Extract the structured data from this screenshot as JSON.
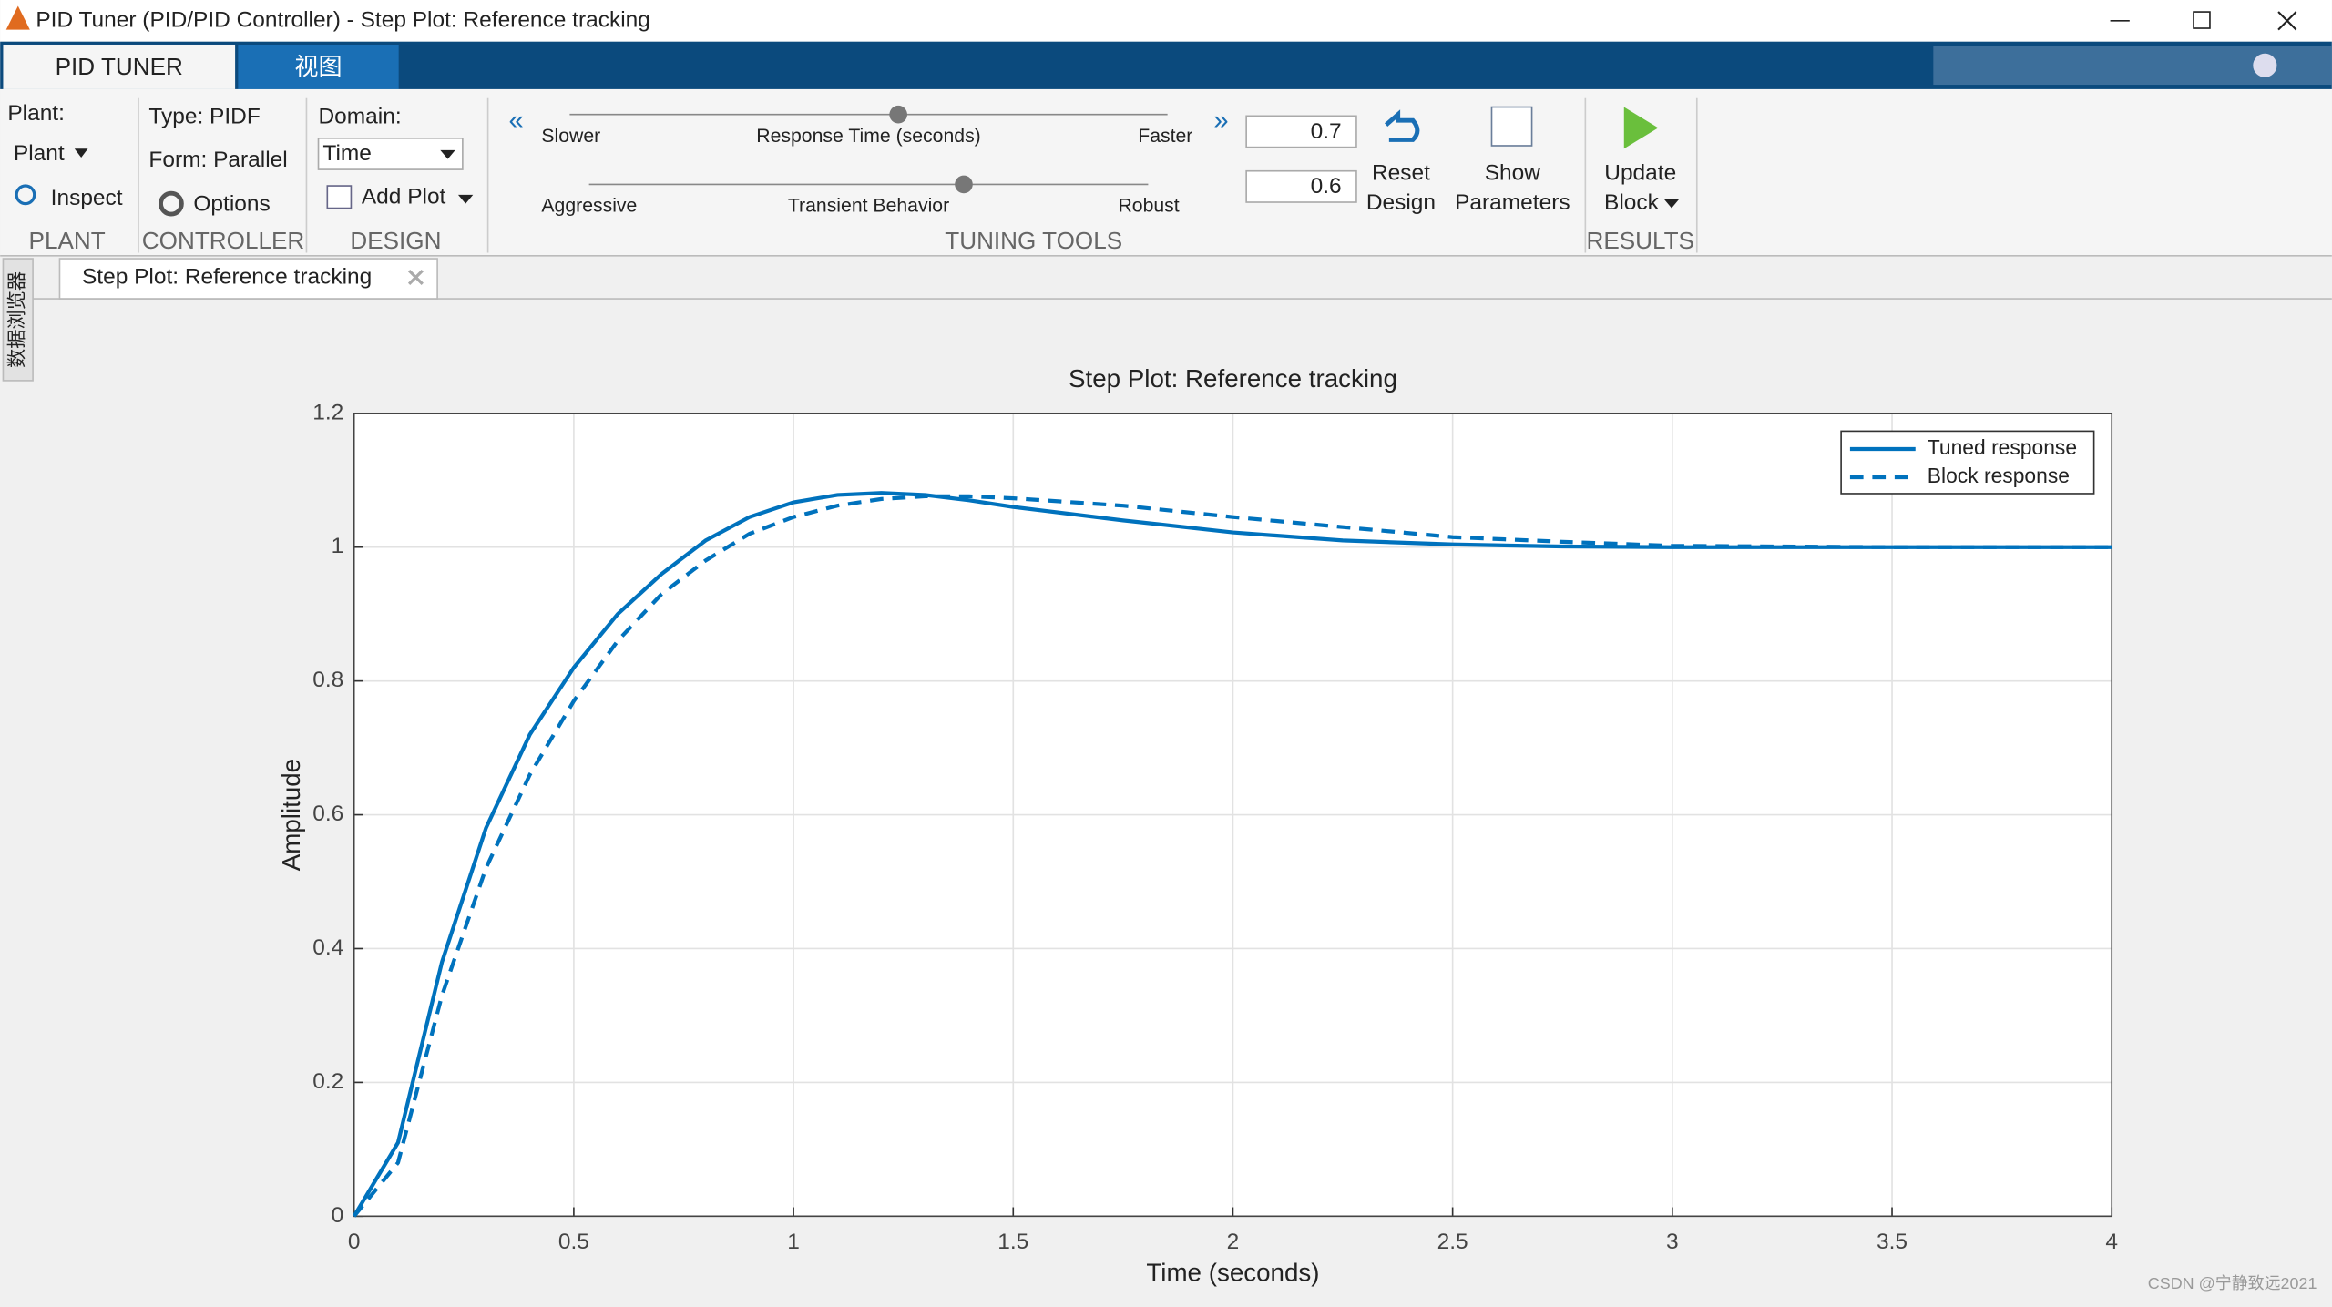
{
  "window": {
    "title": "PID Tuner (PID/PID Controller) - Step Plot: Reference tracking"
  },
  "tabs": [
    "PID TUNER",
    "视图"
  ],
  "toolstrip": {
    "plant": {
      "label": "Plant:",
      "dropdown": "Plant",
      "inspect": "Inspect",
      "group": "PLANT"
    },
    "controller": {
      "type": "Type: PIDF",
      "form": "Form: Parallel",
      "options": "Options",
      "group": "CONTROLLER"
    },
    "design": {
      "domain_label": "Domain:",
      "domain": "Time",
      "add_plot": "Add Plot",
      "group": "DESIGN"
    },
    "tuning": {
      "slower": "Slower",
      "response_time": "Response Time (seconds)",
      "faster": "Faster",
      "aggressive": "Aggressive",
      "transient": "Transient Behavior",
      "robust": "Robust",
      "response_value": 0.7,
      "transient_value": 0.6,
      "reset": [
        "Reset",
        "Design"
      ],
      "show": [
        "Show",
        "Parameters"
      ],
      "group": "TUNING TOOLS"
    },
    "results": {
      "update": [
        "Update",
        "Block"
      ],
      "group": "RESULTS"
    }
  },
  "side_panel": "数据浏览器",
  "document_tab": "Step Plot: Reference tracking",
  "watermark": "CSDN @宁静致远2021",
  "chart_data": {
    "type": "line",
    "title": "Step Plot: Reference tracking",
    "x_label": "Time (seconds)",
    "y_label": "Amplitude",
    "x": [
      0,
      0.1,
      0.2,
      0.3,
      0.4,
      0.5,
      0.6,
      0.7,
      0.8,
      0.9,
      1.0,
      1.1,
      1.2,
      1.3,
      1.4,
      1.5,
      1.75,
      2,
      2.25,
      2.5,
      2.75,
      3,
      3.5,
      4
    ],
    "series": [
      {
        "name": "Tuned response",
        "color": "#0072bd",
        "dash": false,
        "values": [
          0,
          0.11,
          0.38,
          0.58,
          0.72,
          0.82,
          0.9,
          0.96,
          1.01,
          1.045,
          1.067,
          1.078,
          1.081,
          1.078,
          1.07,
          1.06,
          1.04,
          1.022,
          1.01,
          1.004,
          1.001,
          1.0,
          1.0,
          1.0
        ]
      },
      {
        "name": "Block response",
        "color": "#0072bd",
        "dash": true,
        "values": [
          0,
          0.08,
          0.33,
          0.52,
          0.66,
          0.77,
          0.86,
          0.93,
          0.98,
          1.02,
          1.045,
          1.062,
          1.072,
          1.076,
          1.076,
          1.073,
          1.062,
          1.045,
          1.03,
          1.015,
          1.008,
          1.002,
          1.0,
          1.0
        ]
      }
    ],
    "xlim": [
      0,
      4
    ],
    "ylim": [
      0,
      1.2
    ],
    "xticks": [
      0,
      0.5,
      1,
      1.5,
      2,
      2.5,
      3,
      3.5,
      4
    ],
    "yticks": [
      0,
      0.2,
      0.4,
      0.6,
      0.8,
      1,
      1.2
    ],
    "grid": true,
    "legend": "upper right"
  }
}
